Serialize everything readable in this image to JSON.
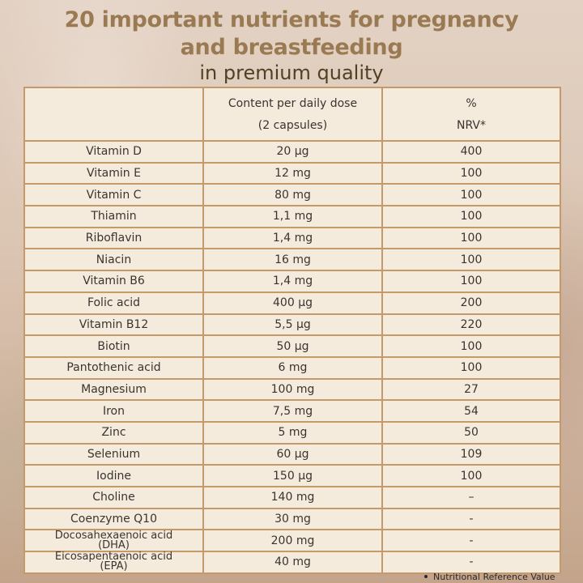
{
  "heading": {
    "line1": "20 important nutrients for pregnancy",
    "line2": "and breastfeeding",
    "subtitle": "in premium quality"
  },
  "colors": {
    "title": "#9a7a52",
    "subtitle": "#4e4226",
    "table_background": "#f5ebdd",
    "table_border": "#c49a6a",
    "text": "#3a3430"
  },
  "table": {
    "headers": {
      "nutrient": "",
      "content_line1": "Content per daily dose",
      "content_line2": "(2 capsules)",
      "nrv_line1": "%",
      "nrv_line2": "NRV*"
    },
    "rows": [
      {
        "nutrient": "Vitamin D",
        "content": "20 µg",
        "nrv": "400"
      },
      {
        "nutrient": "Vitamin E",
        "content": "12 mg",
        "nrv": "100"
      },
      {
        "nutrient": "Vitamin C",
        "content": "80 mg",
        "nrv": "100"
      },
      {
        "nutrient": "Thiamin",
        "content": "1,1 mg",
        "nrv": "100"
      },
      {
        "nutrient": "Riboflavin",
        "content": "1,4 mg",
        "nrv": "100"
      },
      {
        "nutrient": "Niacin",
        "content": "16 mg",
        "nrv": "100"
      },
      {
        "nutrient": "Vitamin B6",
        "content": "1,4 mg",
        "nrv": "100"
      },
      {
        "nutrient": "Folic acid",
        "content": "400 µg",
        "nrv": "200"
      },
      {
        "nutrient": "Vitamin B12",
        "content": "5,5 µg",
        "nrv": "220"
      },
      {
        "nutrient": "Biotin",
        "content": "50 µg",
        "nrv": "100"
      },
      {
        "nutrient": "Pantothenic acid",
        "content": "6 mg",
        "nrv": "100"
      },
      {
        "nutrient": "Magnesium",
        "content": "100 mg",
        "nrv": "27"
      },
      {
        "nutrient": "Iron",
        "content": "7,5 mg",
        "nrv": "54"
      },
      {
        "nutrient": "Zinc",
        "content": "5 mg",
        "nrv": "50"
      },
      {
        "nutrient": "Selenium",
        "content": "60 µg",
        "nrv": "109"
      },
      {
        "nutrient": "Iodine",
        "content": "150 µg",
        "nrv": "100"
      },
      {
        "nutrient": "Choline",
        "content": "140 mg",
        "nrv": "–"
      },
      {
        "nutrient": "Coenzyme Q10",
        "content": "30 mg",
        "nrv": "-"
      },
      {
        "nutrient_line1": "Docosahexaenoic acid",
        "nutrient_line2": "(DHA)",
        "content": "200 mg",
        "nrv": "-"
      },
      {
        "nutrient_line1": "Eicosapentaenoic acid",
        "nutrient_line2": "(EPA)",
        "content": "40 mg",
        "nrv": "-"
      }
    ]
  },
  "footnote": "Nutritional Reference Value"
}
